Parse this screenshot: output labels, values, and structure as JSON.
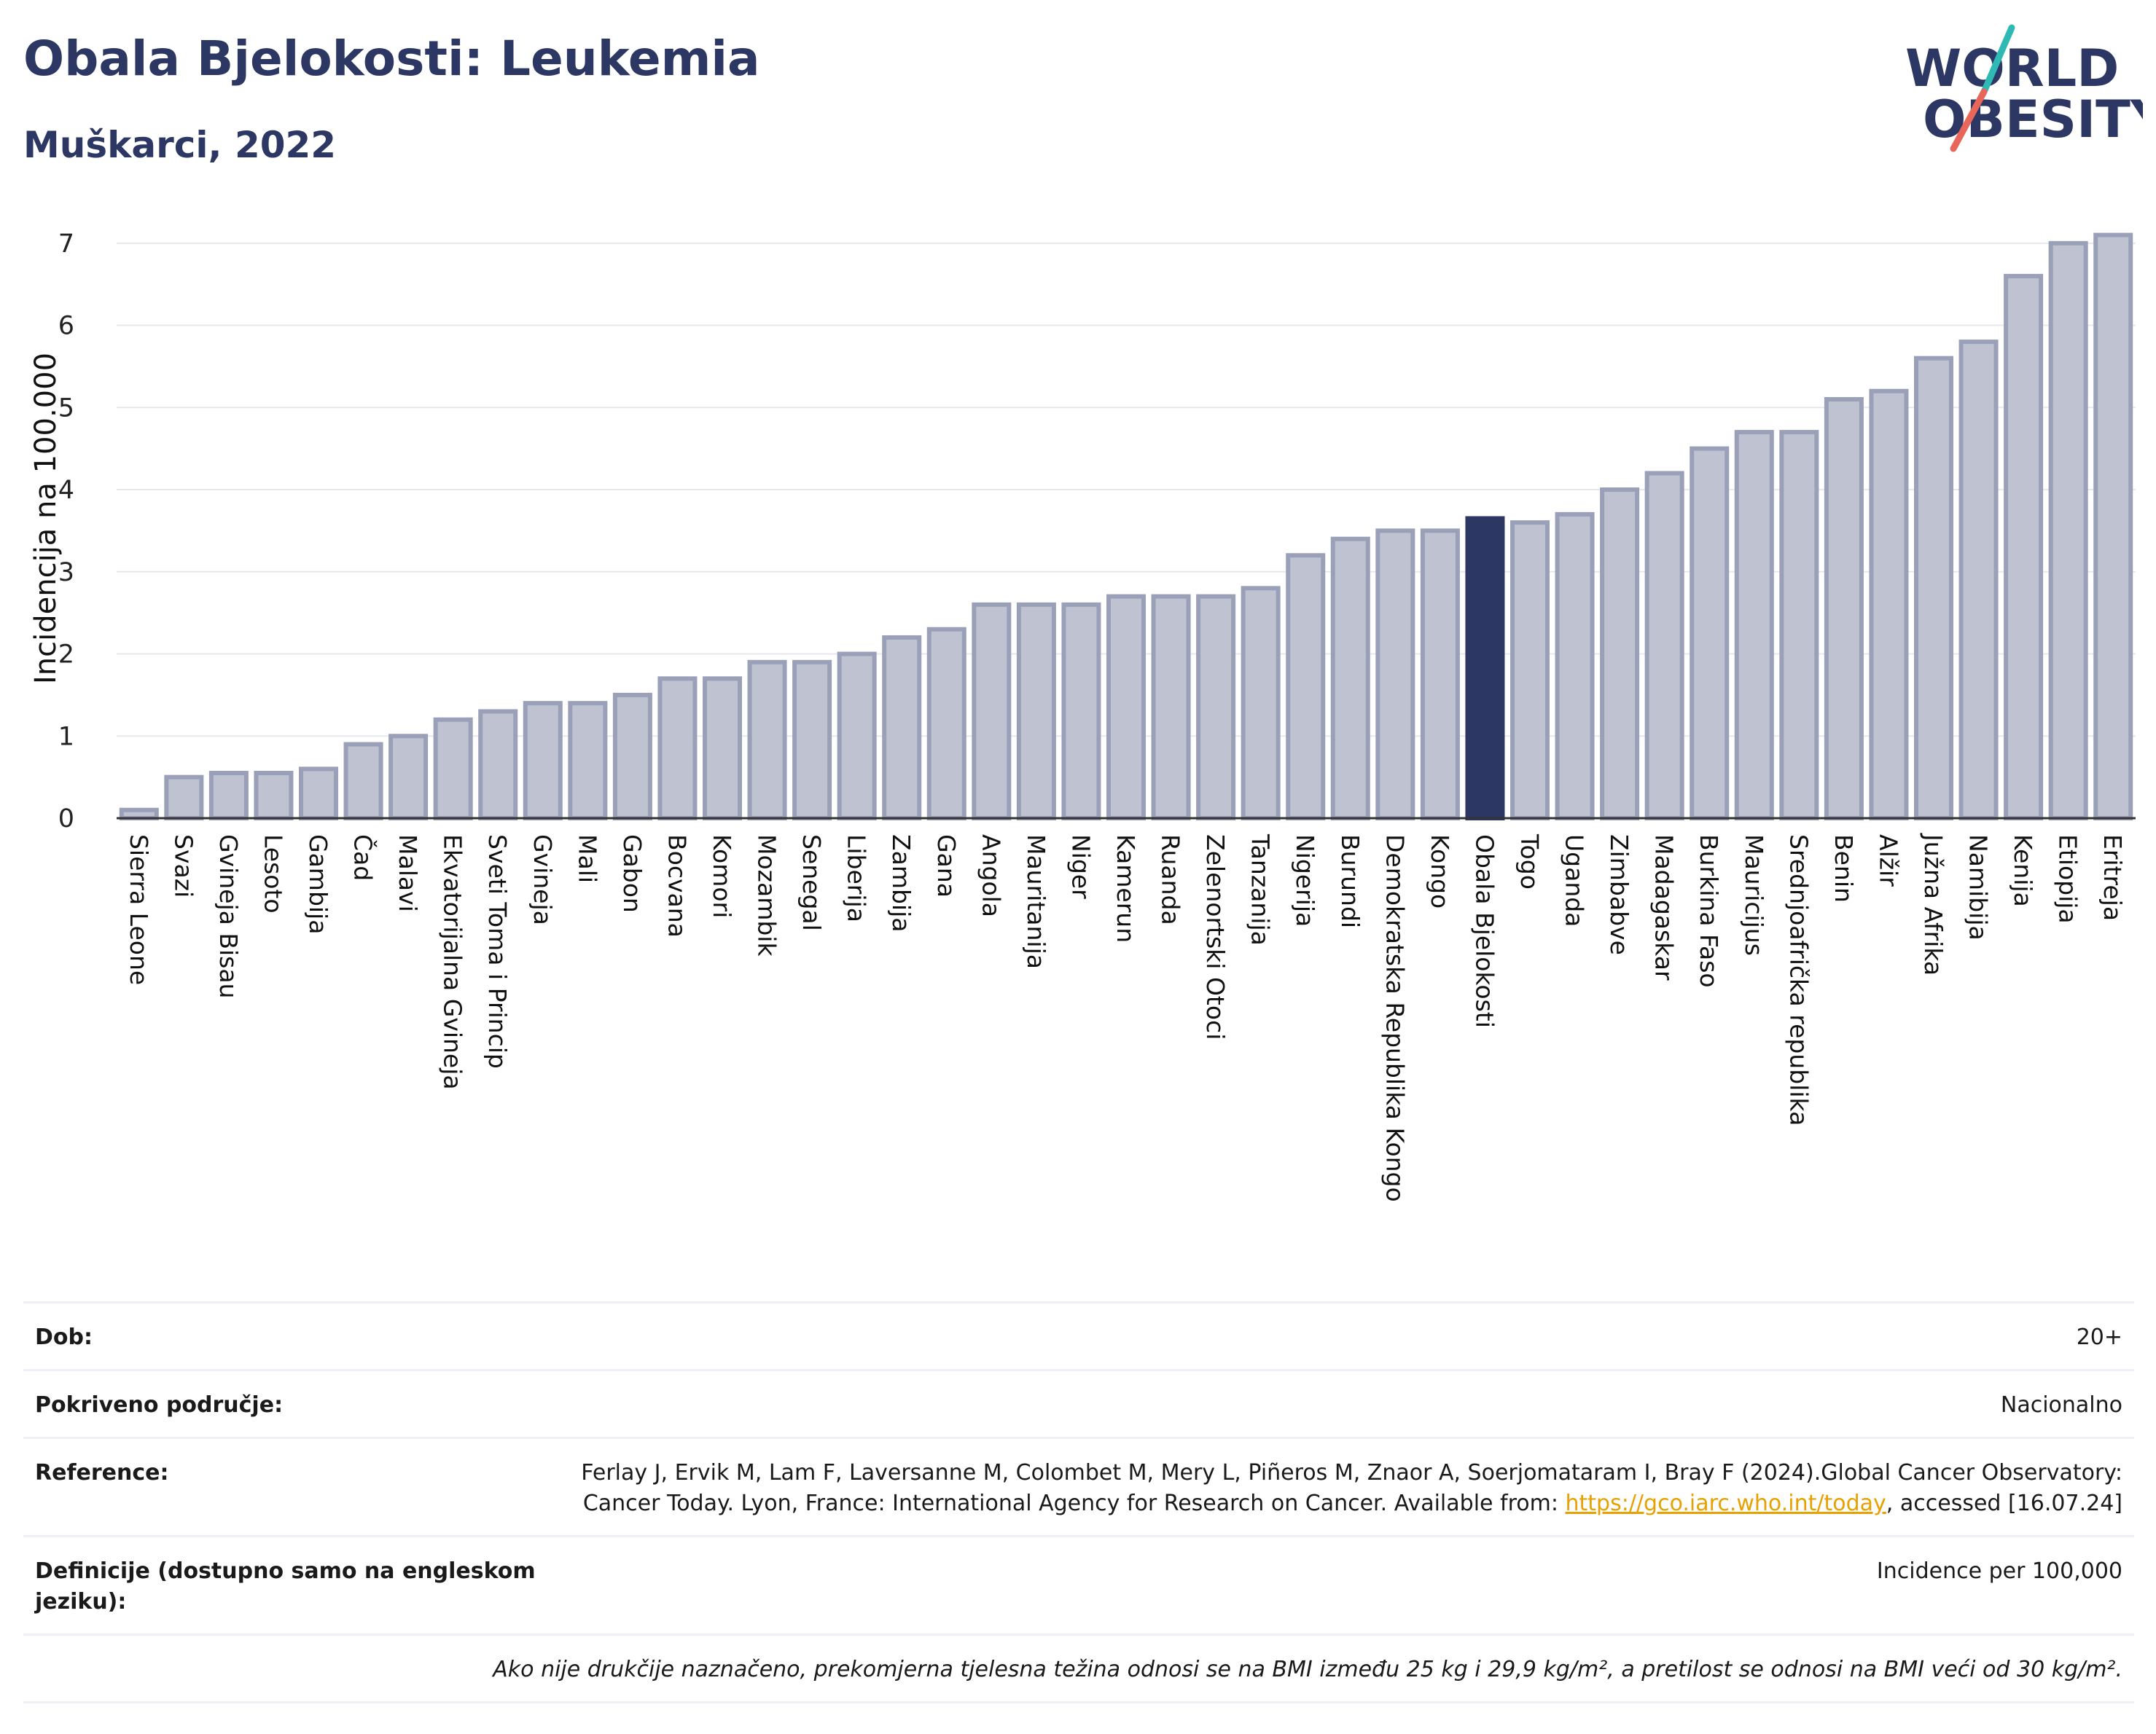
{
  "title": "Obala Bjelokosti: Leukemia",
  "subtitle": "Muškarci, 2022",
  "logo": {
    "line1": "WORLD",
    "line2": "OBESITY"
  },
  "colors": {
    "bar": "#bfc3d1",
    "bar_edge": "#9aa0b8",
    "highlight": "#2c3764",
    "title": "#2c3764",
    "grid": "#e6e8ee"
  },
  "chart_data": {
    "type": "bar",
    "ylabel": "Incidencija na 100.000",
    "xlabel": "",
    "ylim": [
      0,
      7.3
    ],
    "yticks": [
      0,
      1,
      2,
      3,
      4,
      5,
      6,
      7
    ],
    "grid": true,
    "highlight": "Obala Bjelokosti",
    "categories": [
      "Sierra Leone",
      "Svazi",
      "Gvineja Bisau",
      "Lesoto",
      "Gambija",
      "Čad",
      "Malavi",
      "Ekvatorijalna Gvineja",
      "Sveti Toma i Princip",
      "Gvineja",
      "Mali",
      "Gabon",
      "Bocvana",
      "Komori",
      "Mozambik",
      "Senegal",
      "Liberija",
      "Zambija",
      "Gana",
      "Angola",
      "Mauritanija",
      "Niger",
      "Kamerun",
      "Ruanda",
      "Zelenortski Otoci",
      "Tanzanija",
      "Nigerija",
      "Burundi",
      "Demokratska Republika Kongo",
      "Kongo",
      "Obala Bjelokosti",
      "Togo",
      "Uganda",
      "Zimbabve",
      "Madagaskar",
      "Burkina Faso",
      "Mauricijus",
      "Srednjoafrička republika",
      "Benin",
      "Alžir",
      "Južna Afrika",
      "Namibija",
      "Kenija",
      "Etiopija",
      "Eritreja"
    ],
    "values": [
      0.1,
      0.5,
      0.55,
      0.55,
      0.6,
      0.9,
      1.0,
      1.2,
      1.3,
      1.4,
      1.4,
      1.5,
      1.7,
      1.7,
      1.9,
      1.9,
      2.0,
      2.2,
      2.3,
      2.6,
      2.6,
      2.6,
      2.7,
      2.7,
      2.7,
      2.8,
      3.2,
      3.4,
      3.5,
      3.5,
      3.65,
      3.6,
      3.7,
      4.0,
      4.2,
      4.5,
      4.7,
      4.7,
      5.1,
      5.2,
      5.6,
      5.8,
      6.6,
      7.0,
      7.1
    ]
  },
  "info": {
    "rows": [
      {
        "label": "Dob:",
        "value": "20+"
      },
      {
        "label": "Pokriveno područje:",
        "value": "Nacionalno"
      },
      {
        "label": "Reference:",
        "value": "Ferlay J, Ervik M, Lam F, Laversanne M, Colombet M, Mery L, Piñeros M, Znaor A, Soerjomataram I, Bray F (2024).Global Cancer Observatory: Cancer Today. Lyon, France: International Agency for Research on Cancer. Available from:",
        "link": "https://gco.iarc.who.int/today",
        "value_after": ", accessed [16.07.24]"
      },
      {
        "label": "Definicije (dostupno samo na engleskom jeziku):",
        "value": "Incidence per 100,000"
      }
    ],
    "note": "Ako nije drukčije naznačeno, prekomjerna tjelesna težina odnosi se na BMI između 25 kg i 29,9 kg/m², a pretilost se odnosi na BMI veći od 30 kg/m²."
  }
}
